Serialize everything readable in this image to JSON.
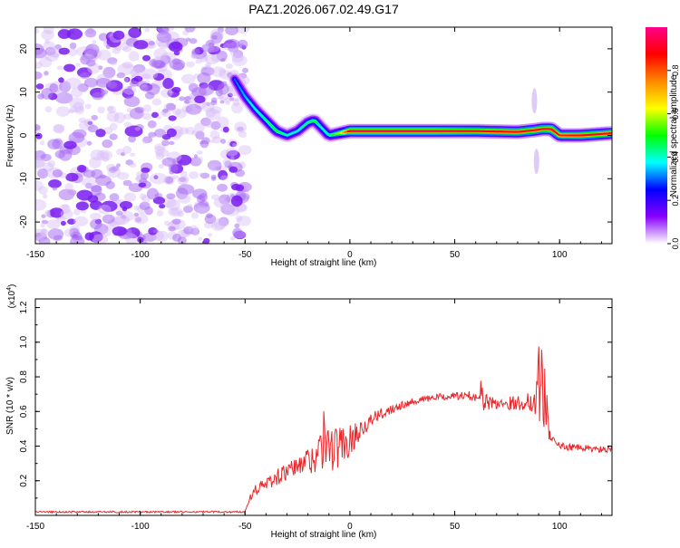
{
  "title": "PAZ1.2026.067.02.49.G17",
  "chart_data": [
    {
      "type": "heatmap",
      "xlabel": "Height of straight line (km)",
      "ylabel": "Frequency (Hz)",
      "xlim": [
        -150,
        125
      ],
      "ylim": [
        -25,
        25
      ],
      "xticks": [
        -150,
        -100,
        -50,
        0,
        50,
        100
      ],
      "yticks": [
        -20,
        -10,
        0,
        10,
        20
      ],
      "colorbar": {
        "label": "Normalized spectral amplitude",
        "range": [
          0,
          1
        ],
        "ticks": [
          "0.0",
          "0.2",
          "0.4",
          "0.6",
          "0.8"
        ],
        "tick_values": [
          0,
          0.2,
          0.4,
          0.6,
          0.8
        ],
        "colormap": [
          "#ffffff",
          "#8800ff",
          "#0000ff",
          "#00ffff",
          "#00ff00",
          "#ffff00",
          "#ff8800",
          "#ff0000",
          "#ff0088"
        ]
      },
      "noise_region": {
        "x_range": [
          -150,
          -53
        ],
        "y_range": [
          -25,
          25
        ],
        "amplitude": 0.15
      },
      "ridge": {
        "x": [
          -55,
          -50,
          -45,
          -40,
          -35,
          -30,
          -25,
          -20,
          -17,
          -14,
          -10,
          -5,
          0,
          20,
          40,
          60,
          80,
          88,
          92,
          96,
          100,
          110,
          125
        ],
        "freq": [
          13,
          9,
          6,
          3.5,
          1,
          0,
          1,
          3,
          3.5,
          2,
          0,
          0.5,
          1,
          1,
          1,
          1,
          0.8,
          1.2,
          1.5,
          1.5,
          0,
          0,
          0.5
        ],
        "amplitude": [
          0.3,
          0.35,
          0.4,
          0.45,
          0.5,
          0.4,
          0.4,
          0.45,
          0.5,
          0.4,
          0.45,
          0.6,
          0.95,
          0.95,
          0.95,
          0.9,
          0.9,
          0.9,
          0.9,
          0.95,
          0.85,
          0.9,
          0.9
        ]
      }
    },
    {
      "type": "line",
      "xlabel": "Height of straight line (km)",
      "ylabel": "SNR (10 * v/v)",
      "yscale_label": "(x10",
      "yscale_exp": "4",
      "yscale_close": ")",
      "xlim": [
        -150,
        125
      ],
      "ylim": [
        0,
        1.25
      ],
      "xticks": [
        -150,
        -100,
        -50,
        0,
        50,
        100
      ],
      "yticks": [
        "0.2",
        "0.4",
        "0.6",
        "0.8",
        "1.0",
        "1.2"
      ],
      "ytick_values": [
        0.2,
        0.4,
        0.6,
        0.8,
        1.0,
        1.2
      ],
      "color": "#e8262a",
      "series": [
        {
          "name": "SNR",
          "x": [
            -150,
            -120,
            -100,
            -80,
            -60,
            -50,
            -48,
            -45,
            -40,
            -35,
            -30,
            -25,
            -20,
            -15,
            -12,
            -10,
            -5,
            0,
            5,
            10,
            20,
            30,
            40,
            50,
            60,
            63,
            65,
            70,
            80,
            88,
            90,
            92,
            94,
            96,
            98,
            100,
            110,
            120,
            125
          ],
          "y": [
            0.02,
            0.02,
            0.02,
            0.02,
            0.02,
            0.02,
            0.1,
            0.15,
            0.18,
            0.22,
            0.25,
            0.28,
            0.32,
            0.35,
            0.45,
            0.38,
            0.4,
            0.43,
            0.5,
            0.55,
            0.62,
            0.66,
            0.68,
            0.69,
            0.69,
            0.7,
            0.65,
            0.65,
            0.65,
            0.66,
            0.85,
            0.7,
            0.6,
            0.45,
            0.42,
            0.4,
            0.39,
            0.38,
            0.38
          ],
          "noise": [
            0.005,
            0.005,
            0.005,
            0.005,
            0.005,
            0.005,
            0.02,
            0.03,
            0.04,
            0.05,
            0.05,
            0.06,
            0.08,
            0.12,
            0.18,
            0.15,
            0.12,
            0.09,
            0.06,
            0.04,
            0.03,
            0.02,
            0.02,
            0.02,
            0.03,
            0.1,
            0.05,
            0.04,
            0.04,
            0.08,
            0.3,
            0.25,
            0.15,
            0.04,
            0.02,
            0.02,
            0.02,
            0.02,
            0.02
          ]
        }
      ]
    }
  ]
}
